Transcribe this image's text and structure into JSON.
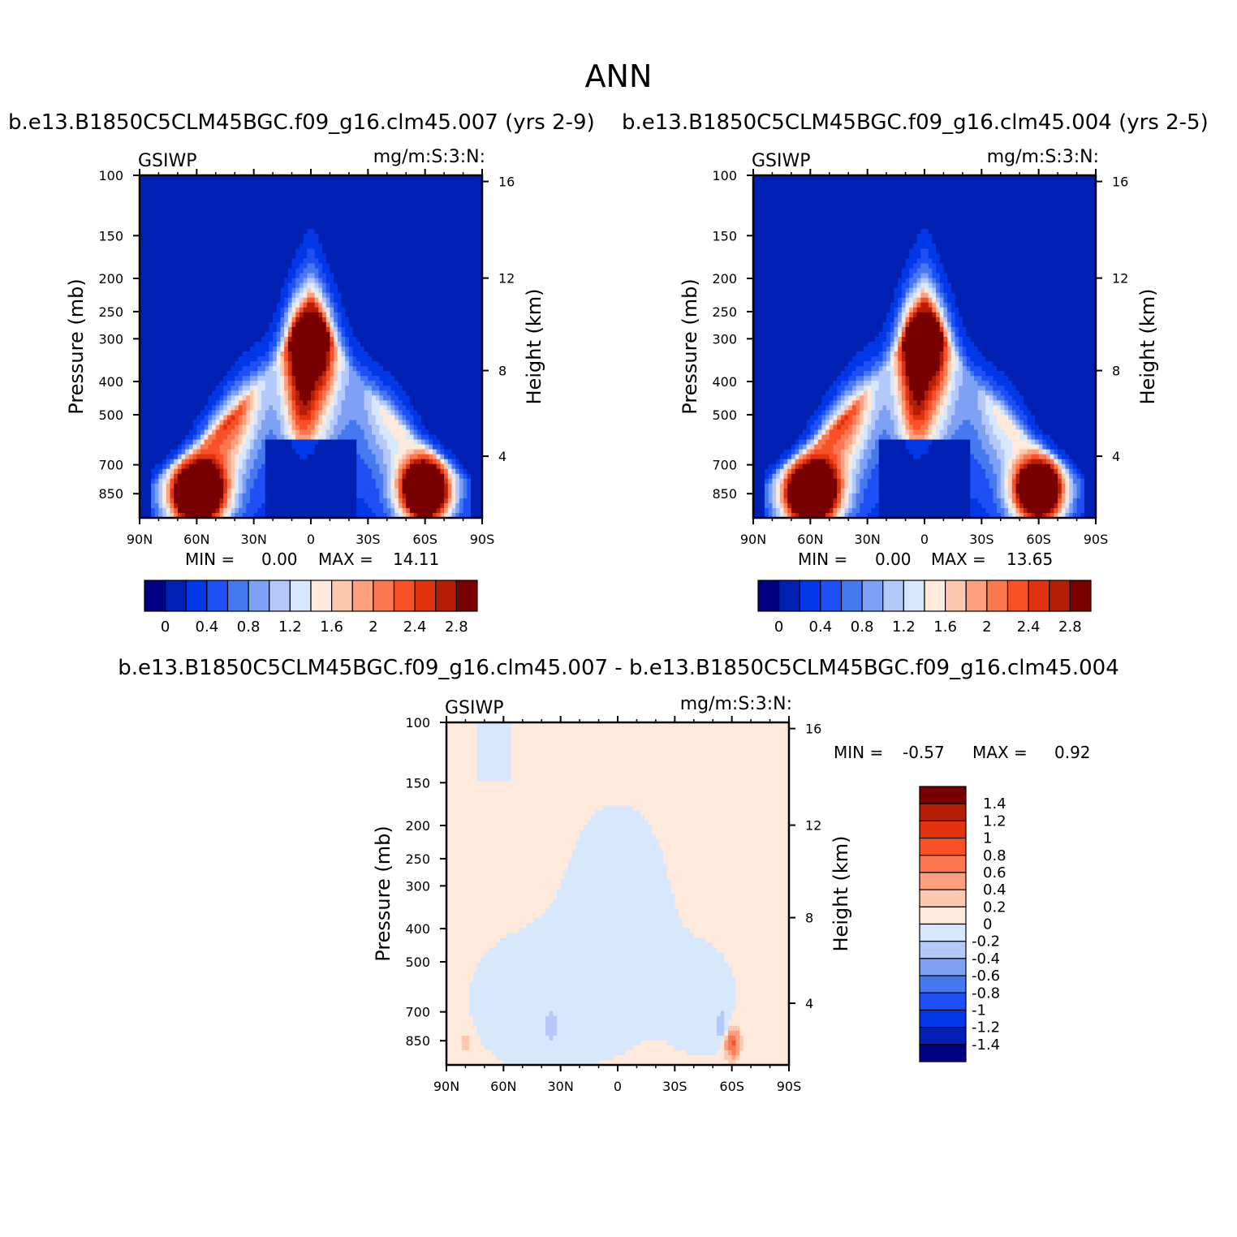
{
  "figure": {
    "title": "ANN",
    "left_title": "b.e13.B1850C5CLM45BGC.f09_g16.clm45.007 (yrs 2-9)",
    "right_title": "b.e13.B1850C5CLM45BGC.f09_g16.clm45.004 (yrs 2-5)",
    "diff_title": "b.e13.B1850C5CLM45BGC.f09_g16.clm45.007 - b.e13.B1850C5CLM45BGC.f09_g16.clm45.004"
  },
  "chart_data": [
    {
      "type": "heatmap",
      "name": "panel-1",
      "variable": "GSIWP",
      "units": "mg/m:S:3:N:",
      "ylabel": "Pressure (mb)",
      "y2label": "Height (km)",
      "xticks": [
        "90N",
        "60N",
        "30N",
        "0",
        "30S",
        "60S",
        "90S"
      ],
      "x_range": [
        90,
        -90
      ],
      "yticks": [
        100,
        150,
        200,
        250,
        300,
        400,
        500,
        700,
        850
      ],
      "y_range": [
        100,
        1000
      ],
      "y_scale": "log",
      "y2ticks": [
        16,
        12,
        8,
        4
      ],
      "min_label": "MIN =",
      "min_value": "0.00",
      "max_label": "MAX =",
      "max_value": "14.11",
      "colorbar": {
        "orientation": "horizontal",
        "labels": [
          "0",
          "0.4",
          "0.8",
          "1.2",
          "1.6",
          "2",
          "2.4",
          "2.8"
        ],
        "colors": [
          "#000080",
          "#0020b4",
          "#0037e6",
          "#1e50f5",
          "#4678f0",
          "#7ea0f5",
          "#b4c8fa",
          "#d8e8fc",
          "#feeadc",
          "#fdc8b0",
          "#fca080",
          "#fb7850",
          "#fa5028",
          "#e13210",
          "#b41e05",
          "#780000"
        ]
      }
    },
    {
      "type": "heatmap",
      "name": "panel-2",
      "variable": "GSIWP",
      "units": "mg/m:S:3:N:",
      "ylabel": "Pressure (mb)",
      "y2label": "Height (km)",
      "xticks": [
        "90N",
        "60N",
        "30N",
        "0",
        "30S",
        "60S",
        "90S"
      ],
      "x_range": [
        90,
        -90
      ],
      "yticks": [
        100,
        150,
        200,
        250,
        300,
        400,
        500,
        700,
        850
      ],
      "y_range": [
        100,
        1000
      ],
      "y_scale": "log",
      "y2ticks": [
        16,
        12,
        8,
        4
      ],
      "min_label": "MIN =",
      "min_value": "0.00",
      "max_label": "MAX =",
      "max_value": "13.65",
      "colorbar": {
        "orientation": "horizontal",
        "labels": [
          "0",
          "0.4",
          "0.8",
          "1.2",
          "1.6",
          "2",
          "2.4",
          "2.8"
        ],
        "colors": [
          "#000080",
          "#0020b4",
          "#0037e6",
          "#1e50f5",
          "#4678f0",
          "#7ea0f5",
          "#b4c8fa",
          "#d8e8fc",
          "#feeadc",
          "#fdc8b0",
          "#fca080",
          "#fb7850",
          "#fa5028",
          "#e13210",
          "#b41e05",
          "#780000"
        ]
      }
    },
    {
      "type": "heatmap",
      "name": "difference",
      "variable": "GSIWP",
      "units": "mg/m:S:3:N:",
      "ylabel": "Pressure (mb)",
      "y2label": "Height (km)",
      "xticks": [
        "90N",
        "60N",
        "30N",
        "0",
        "30S",
        "60S",
        "90S"
      ],
      "x_range": [
        90,
        -90
      ],
      "yticks": [
        100,
        150,
        200,
        250,
        300,
        400,
        500,
        700,
        850
      ],
      "y_range": [
        100,
        1000
      ],
      "y_scale": "log",
      "y2ticks": [
        16,
        12,
        8,
        4
      ],
      "min_label": "MIN =",
      "min_value": "-0.57",
      "max_label": "MAX =",
      "max_value": "0.92",
      "colorbar": {
        "orientation": "vertical",
        "labels": [
          "1.4",
          "1.2",
          "1",
          "0.8",
          "0.6",
          "0.4",
          "0.2",
          "0",
          "-0.2",
          "-0.4",
          "-0.6",
          "-0.8",
          "-1",
          "-1.2",
          "-1.4"
        ],
        "colors": [
          "#780000",
          "#b41e05",
          "#e13210",
          "#fa5028",
          "#fb7850",
          "#fca080",
          "#fdc8b0",
          "#feeadc",
          "#d8e8fc",
          "#b4c8fa",
          "#7ea0f5",
          "#4678f0",
          "#1e50f5",
          "#0037e6",
          "#0020b4",
          "#000080"
        ]
      }
    }
  ]
}
